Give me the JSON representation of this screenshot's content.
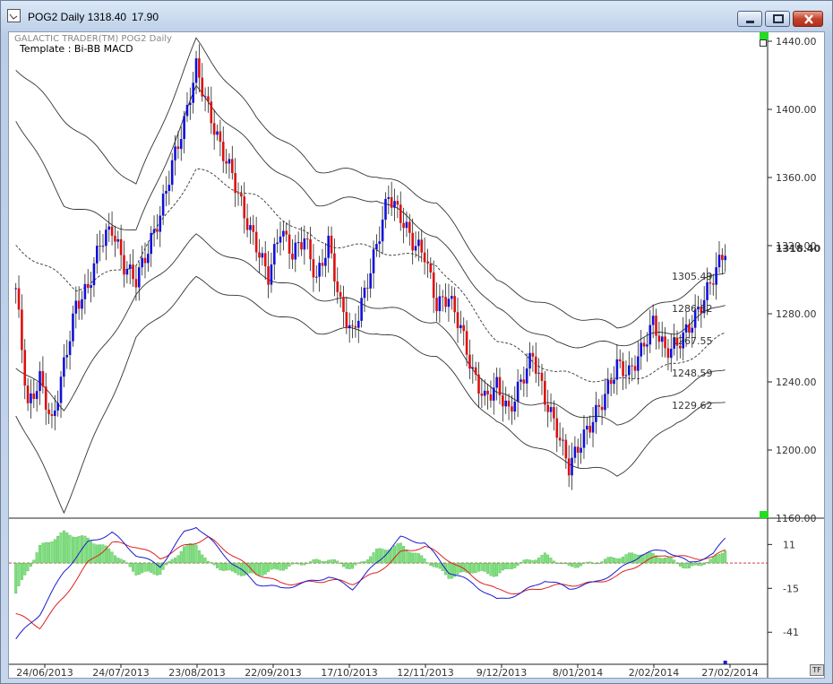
{
  "window": {
    "title": "POG2 Daily 1318.40",
    "title_value": "17.90",
    "minimize_icon": "minimize-icon",
    "maximize_icon": "maximize-icon",
    "close_icon": "close-icon"
  },
  "chart": {
    "header_line1": "GALACTIC TRADER(TM)    POG2 Daily",
    "header_line2": "Template : Bi-BB MACD",
    "tf_button": "TF",
    "last_price_label": "1318.40",
    "band_labels": [
      "1305.49",
      "1286.52",
      "1267.55",
      "1248.59",
      "1229.62"
    ]
  },
  "chart_data": [
    {
      "type": "candlestick",
      "title": "POG2 Daily",
      "ylim": [
        1160,
        1440
      ],
      "yticks": [
        "1440.00",
        "1400.00",
        "1360.00",
        "1320.00",
        "1280.00",
        "1240.00",
        "1200.00",
        "1160.00"
      ],
      "ytick_values": [
        1440,
        1400,
        1360,
        1320,
        1280,
        1240,
        1200,
        1160
      ],
      "xticks": [
        "24/06/2013",
        "24/07/2013",
        "23/08/2013",
        "22/09/2013",
        "17/10/2013",
        "12/11/2013",
        "9/12/2013",
        "8/01/2014",
        "2/02/2014",
        "27/02/2014"
      ],
      "last": 1318.4,
      "colors": {
        "up": "#1010dd",
        "down": "#dd1010",
        "bands": "#333333"
      },
      "close_path": [
        [
          0,
          1295
        ],
        [
          4,
          1225
        ],
        [
          8,
          1242
        ],
        [
          12,
          1215
        ],
        [
          16,
          1250
        ],
        [
          20,
          1285
        ],
        [
          24,
          1295
        ],
        [
          28,
          1322
        ],
        [
          32,
          1330
        ],
        [
          36,
          1308
        ],
        [
          40,
          1300
        ],
        [
          44,
          1318
        ],
        [
          48,
          1338
        ],
        [
          52,
          1368
        ],
        [
          56,
          1392
        ],
        [
          60,
          1425
        ],
        [
          64,
          1400
        ],
        [
          68,
          1378
        ],
        [
          72,
          1362
        ],
        [
          76,
          1338
        ],
        [
          80,
          1320
        ],
        [
          84,
          1302
        ],
        [
          88,
          1330
        ],
        [
          92,
          1315
        ],
        [
          96,
          1325
        ],
        [
          100,
          1300
        ],
        [
          104,
          1322
        ],
        [
          108,
          1285
        ],
        [
          112,
          1268
        ],
        [
          116,
          1292
        ],
        [
          120,
          1320
        ],
        [
          124,
          1350
        ],
        [
          128,
          1337
        ],
        [
          132,
          1322
        ],
        [
          136,
          1315
        ],
        [
          140,
          1285
        ],
        [
          144,
          1290
        ],
        [
          148,
          1272
        ],
        [
          152,
          1245
        ],
        [
          156,
          1230
        ],
        [
          160,
          1238
        ],
        [
          164,
          1222
        ],
        [
          168,
          1240
        ],
        [
          172,
          1256
        ],
        [
          176,
          1230
        ],
        [
          180,
          1212
        ],
        [
          184,
          1190
        ],
        [
          188,
          1205
        ],
        [
          192,
          1218
        ],
        [
          196,
          1232
        ],
        [
          200,
          1250
        ],
        [
          204,
          1245
        ],
        [
          208,
          1258
        ],
        [
          212,
          1275
        ],
        [
          216,
          1258
        ],
        [
          220,
          1262
        ],
        [
          224,
          1272
        ],
        [
          228,
          1285
        ],
        [
          232,
          1302
        ],
        [
          236,
          1318
        ]
      ],
      "bollinger": {
        "mid": [
          [
            0,
            1320
          ],
          [
            20,
            1295
          ],
          [
            40,
            1310
          ],
          [
            60,
            1365
          ],
          [
            80,
            1348
          ],
          [
            100,
            1322
          ],
          [
            120,
            1318
          ],
          [
            140,
            1310
          ],
          [
            160,
            1265
          ],
          [
            180,
            1245
          ],
          [
            200,
            1240
          ],
          [
            220,
            1250
          ],
          [
            236,
            1267.55
          ]
        ],
        "inner_upper": [
          [
            0,
            1395
          ],
          [
            16,
            1345
          ],
          [
            40,
            1328
          ],
          [
            60,
            1412
          ],
          [
            80,
            1375
          ],
          [
            100,
            1345
          ],
          [
            120,
            1348
          ],
          [
            140,
            1325
          ],
          [
            160,
            1282
          ],
          [
            180,
            1262
          ],
          [
            200,
            1262
          ],
          [
            220,
            1270
          ],
          [
            236,
            1286.52
          ]
        ],
        "outer_upper": [
          [
            0,
            1425
          ],
          [
            16,
            1395
          ],
          [
            40,
            1355
          ],
          [
            60,
            1440
          ],
          [
            80,
            1395
          ],
          [
            100,
            1365
          ],
          [
            120,
            1362
          ],
          [
            140,
            1345
          ],
          [
            160,
            1298
          ],
          [
            180,
            1282
          ],
          [
            200,
            1272
          ],
          [
            220,
            1290
          ],
          [
            236,
            1305.49
          ]
        ],
        "inner_lower": [
          [
            0,
            1250
          ],
          [
            16,
            1225
          ],
          [
            40,
            1290
          ],
          [
            60,
            1325
          ],
          [
            80,
            1305
          ],
          [
            100,
            1290
          ],
          [
            120,
            1285
          ],
          [
            140,
            1275
          ],
          [
            160,
            1232
          ],
          [
            180,
            1225
          ],
          [
            200,
            1215
          ],
          [
            220,
            1235
          ],
          [
            236,
            1248.59
          ]
        ],
        "outer_lower": [
          [
            0,
            1222
          ],
          [
            16,
            1165
          ],
          [
            40,
            1265
          ],
          [
            60,
            1300
          ],
          [
            80,
            1285
          ],
          [
            100,
            1270
          ],
          [
            120,
            1270
          ],
          [
            140,
            1255
          ],
          [
            160,
            1215
          ],
          [
            180,
            1195
          ],
          [
            200,
            1185
          ],
          [
            220,
            1218
          ],
          [
            236,
            1229.62
          ]
        ]
      }
    },
    {
      "type": "macd",
      "ylim": [
        -60,
        25
      ],
      "yticks": [
        "11",
        "-15",
        "-41"
      ],
      "ytick_values": [
        11,
        -15,
        -41
      ],
      "colors": {
        "macd": "#1a1ad0",
        "signal": "#dd2020",
        "hist": "#7ee27e",
        "zero": "#cc2222"
      },
      "macd": [
        [
          0,
          -45
        ],
        [
          8,
          -30
        ],
        [
          16,
          -5
        ],
        [
          24,
          12
        ],
        [
          32,
          18
        ],
        [
          40,
          5
        ],
        [
          48,
          -2
        ],
        [
          56,
          18
        ],
        [
          60,
          22
        ],
        [
          64,
          15
        ],
        [
          72,
          0
        ],
        [
          80,
          -12
        ],
        [
          88,
          -15
        ],
        [
          96,
          -12
        ],
        [
          104,
          -8
        ],
        [
          112,
          -15
        ],
        [
          120,
          0
        ],
        [
          128,
          15
        ],
        [
          136,
          12
        ],
        [
          144,
          -5
        ],
        [
          152,
          -12
        ],
        [
          160,
          -22
        ],
        [
          168,
          -18
        ],
        [
          176,
          -10
        ],
        [
          184,
          -15
        ],
        [
          192,
          -12
        ],
        [
          200,
          -5
        ],
        [
          208,
          5
        ],
        [
          216,
          8
        ],
        [
          224,
          0
        ],
        [
          232,
          5
        ],
        [
          236,
          15
        ]
      ],
      "signal": [
        [
          0,
          -30
        ],
        [
          8,
          -38
        ],
        [
          16,
          -20
        ],
        [
          24,
          0
        ],
        [
          32,
          12
        ],
        [
          40,
          10
        ],
        [
          48,
          3
        ],
        [
          56,
          10
        ],
        [
          64,
          15
        ],
        [
          72,
          5
        ],
        [
          80,
          -6
        ],
        [
          88,
          -12
        ],
        [
          96,
          -12
        ],
        [
          104,
          -10
        ],
        [
          112,
          -12
        ],
        [
          120,
          -6
        ],
        [
          128,
          6
        ],
        [
          136,
          10
        ],
        [
          144,
          2
        ],
        [
          152,
          -8
        ],
        [
          160,
          -16
        ],
        [
          168,
          -18
        ],
        [
          176,
          -14
        ],
        [
          184,
          -13
        ],
        [
          192,
          -12
        ],
        [
          200,
          -8
        ],
        [
          208,
          0
        ],
        [
          216,
          5
        ],
        [
          224,
          3
        ],
        [
          232,
          3
        ],
        [
          236,
          8
        ]
      ]
    }
  ]
}
